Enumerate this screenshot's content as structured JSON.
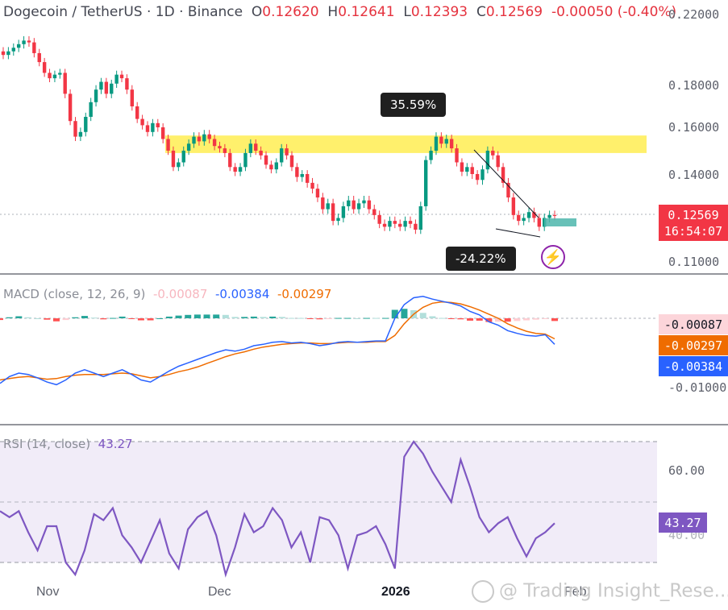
{
  "header": {
    "pair": "Dogecoin / TetherUS · 1D · Binance",
    "open_label": "O",
    "open": "0.12620",
    "high_label": "H",
    "high": "0.12641",
    "low_label": "L",
    "low": "0.12393",
    "close_label": "C",
    "close": "0.12569",
    "change": "-0.00050 (-0.40%)"
  },
  "price_axis": {
    "ticks": [
      "0.22000",
      "0.18000",
      "0.16000",
      "0.14000",
      "0.11000"
    ],
    "current_price": "0.12569",
    "countdown": "16:54:07"
  },
  "annotations": {
    "rise_label": "35.59%",
    "fall_label": "-24.22%",
    "flash_icon": "lightning-icon"
  },
  "macd": {
    "label": "MACD (close, 12, 26, 9)",
    "histogram_value": "-0.00087",
    "macd_value": "-0.00384",
    "signal_value": "-0.00297",
    "axis_tick": "-0.01000",
    "colors": {
      "histogram_neg": "#f7b6bf",
      "macd": "#2962ff",
      "signal": "#ef6c00"
    }
  },
  "rsi": {
    "label": "RSI (14, close)",
    "value": "43.27",
    "axis_tick": "60.00",
    "axis_tick_partial": "40.00",
    "color": "#7e57c2"
  },
  "x_axis": {
    "ticks": [
      "Nov",
      "Dec",
      "2026",
      "Feb"
    ]
  },
  "watermark": "@ Trading Insight_Rese...",
  "chart_data": {
    "type": "candlestick",
    "x_labels": [
      "Nov",
      "Dec",
      "2026",
      "Feb"
    ],
    "price_range": [
      0.105,
      0.225
    ],
    "resistance_zone": [
      0.149,
      0.1565
    ],
    "closes": [
      0.197,
      0.199,
      0.201,
      0.203,
      0.205,
      0.204,
      0.198,
      0.193,
      0.187,
      0.184,
      0.186,
      0.187,
      0.176,
      0.163,
      0.156,
      0.158,
      0.165,
      0.172,
      0.178,
      0.182,
      0.176,
      0.181,
      0.186,
      0.184,
      0.178,
      0.17,
      0.164,
      0.161,
      0.158,
      0.162,
      0.16,
      0.155,
      0.15,
      0.143,
      0.145,
      0.15,
      0.153,
      0.156,
      0.154,
      0.157,
      0.155,
      0.152,
      0.151,
      0.149,
      0.143,
      0.141,
      0.143,
      0.149,
      0.153,
      0.15,
      0.148,
      0.144,
      0.142,
      0.145,
      0.151,
      0.148,
      0.143,
      0.139,
      0.14,
      0.137,
      0.135,
      0.132,
      0.128,
      0.13,
      0.124,
      0.125,
      0.129,
      0.131,
      0.128,
      0.13,
      0.131,
      0.128,
      0.126,
      0.123,
      0.122,
      0.124,
      0.123,
      0.122,
      0.124,
      0.123,
      0.121,
      0.129,
      0.146,
      0.15,
      0.156,
      0.153,
      0.155,
      0.151,
      0.145,
      0.141,
      0.143,
      0.14,
      0.138,
      0.142,
      0.15,
      0.148,
      0.143,
      0.137,
      0.132,
      0.126,
      0.124,
      0.125,
      0.127,
      0.125,
      0.122,
      0.125,
      0.126,
      0.1257
    ],
    "macd_line": [
      -0.0095,
      -0.0085,
      -0.008,
      -0.0082,
      -0.0087,
      -0.0093,
      -0.0097,
      -0.009,
      -0.008,
      -0.0075,
      -0.008,
      -0.0085,
      -0.008,
      -0.0075,
      -0.0082,
      -0.009,
      -0.0093,
      -0.0085,
      -0.0077,
      -0.007,
      -0.0065,
      -0.006,
      -0.0055,
      -0.005,
      -0.0046,
      -0.0048,
      -0.0045,
      -0.004,
      -0.0038,
      -0.0035,
      -0.0034,
      -0.0036,
      -0.0035,
      -0.0037,
      -0.004,
      -0.0038,
      -0.0035,
      -0.0034,
      -0.0035,
      -0.0034,
      -0.0033,
      -0.0033,
      0.0,
      0.002,
      0.003,
      0.0032,
      0.0028,
      0.0025,
      0.0022,
      0.0018,
      0.001,
      0.0005,
      -0.0005,
      -0.001,
      -0.0018,
      -0.0022,
      -0.0025,
      -0.0026,
      -0.0024,
      -0.0038
    ],
    "signal_line": [
      -0.009,
      -0.0088,
      -0.0086,
      -0.0085,
      -0.0087,
      -0.0089,
      -0.0088,
      -0.0085,
      -0.0083,
      -0.0082,
      -0.0082,
      -0.0082,
      -0.0081,
      -0.008,
      -0.0081,
      -0.0084,
      -0.0087,
      -0.0085,
      -0.0082,
      -0.0078,
      -0.0075,
      -0.0071,
      -0.0066,
      -0.0061,
      -0.0056,
      -0.0052,
      -0.0049,
      -0.0045,
      -0.0042,
      -0.004,
      -0.0038,
      -0.0037,
      -0.0036,
      -0.0036,
      -0.0037,
      -0.0037,
      -0.0036,
      -0.0035,
      -0.0035,
      -0.0035,
      -0.0034,
      -0.0034,
      -0.0025,
      -0.0008,
      0.0006,
      0.0016,
      0.0022,
      0.0024,
      0.0023,
      0.0021,
      0.0017,
      0.0012,
      0.0006,
      0.0,
      -0.0008,
      -0.0014,
      -0.0019,
      -0.0022,
      -0.0023,
      -0.003
    ],
    "rsi_values": [
      47,
      45,
      47,
      40,
      34,
      42,
      42,
      30,
      26,
      34,
      46,
      44,
      48,
      39,
      35,
      30,
      37,
      44,
      33,
      28,
      41,
      45,
      47,
      39,
      26,
      35,
      46,
      40,
      42,
      48,
      44,
      35,
      40,
      30,
      45,
      44,
      39,
      28,
      39,
      40,
      42,
      36,
      28,
      65,
      70,
      66,
      60,
      55,
      50,
      64,
      55,
      45,
      40,
      43,
      45,
      38,
      32,
      38,
      40,
      43
    ],
    "rsi_range": [
      20,
      80
    ],
    "rsi_levels": [
      70,
      30
    ]
  }
}
